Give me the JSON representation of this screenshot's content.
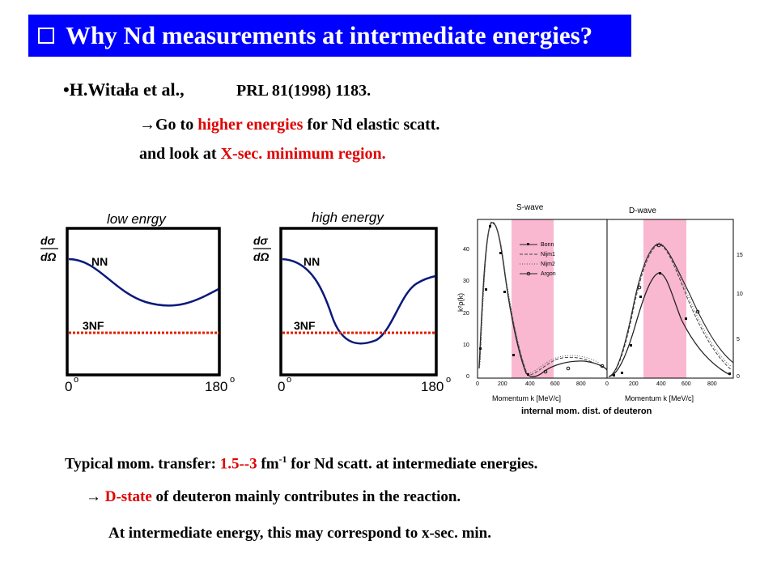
{
  "title": {
    "text": "Why Nd measurements at intermediate energies?"
  },
  "reference": {
    "bullet": "•",
    "authors": "H.Witała et al.,",
    "journal": "PRL 81(1998) 1183."
  },
  "motivation": {
    "arrow": "→",
    "line1_part1": "Go to ",
    "line1_highlight": "higher energies",
    "line1_part2": " for Nd elastic scatt.",
    "line2_part1": "and look at ",
    "line2_highlight": "X-sec. minimum region."
  },
  "sketch_low": {
    "title": "low enrgy",
    "ylabel_num": "dσ",
    "ylabel_den": "dΩ",
    "nn_label": "NN",
    "threenf_label": "3NF",
    "x_min": "0",
    "x_max": "180",
    "deg": "o"
  },
  "sketch_high": {
    "title": "high energy",
    "ylabel_num": "dσ",
    "ylabel_den": "dΩ",
    "nn_label": "NN",
    "threenf_label": "3NF",
    "x_min": "0",
    "x_max": "180",
    "deg": "o"
  },
  "deuteron_plot": {
    "panel_left_title": "S-wave",
    "panel_right_title": "D-wave",
    "ylabel": "k²ρ(k)",
    "xlabel": "Momentum k [MeV/c]",
    "xticks": [
      "0",
      "200",
      "400",
      "600",
      "800"
    ],
    "left_yticks": [
      "0",
      "10",
      "20",
      "30",
      "40"
    ],
    "right_yticks": [
      "0",
      "5",
      "10",
      "15"
    ],
    "legend": [
      "Bonn",
      "Nijm1",
      "Nijm2",
      "Argon"
    ],
    "caption": "internal mom. dist. of deuteron",
    "highlight_color": "#f9b8cf"
  },
  "bottom": {
    "l1_part1": "Typical mom. transfer: ",
    "l1_range": "1.5--3",
    "l1_unit": " fm",
    "l1_exp": "-1",
    "l1_part2": " for Nd scatt. at intermediate energies.",
    "l2_arrow": "→",
    "l2_highlight": "D-state",
    "l2_rest": " of deuteron mainly contributes in the reaction.",
    "l3": "At intermediate energy, this may correspond to x-sec. min."
  },
  "colors": {
    "title_bg": "#0000ff",
    "accent_red": "#e00000",
    "curve_blue": "#0a1a7a",
    "dotted_red": "#e02000"
  }
}
